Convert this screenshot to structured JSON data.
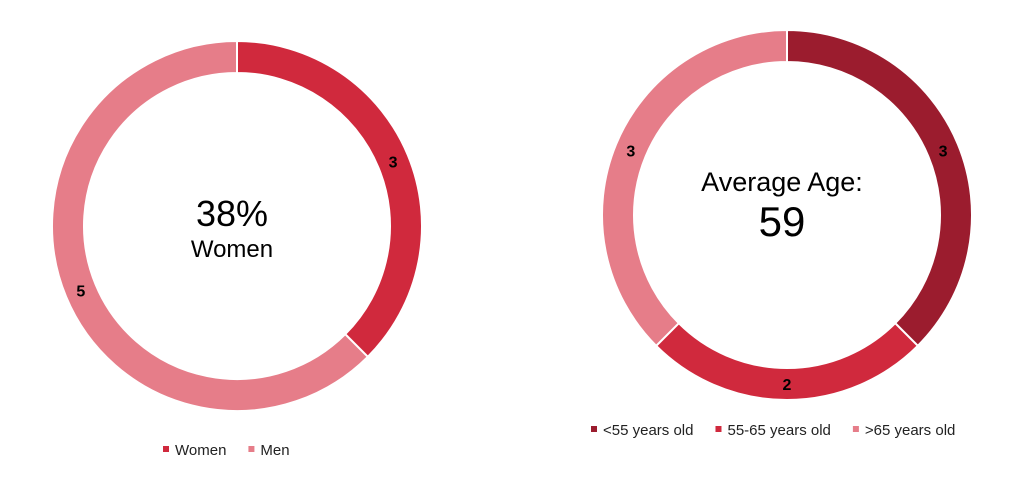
{
  "chart_data": [
    {
      "type": "donut",
      "center_value": "38%",
      "center_label": "Women",
      "slices": [
        {
          "name": "Women",
          "value": 3,
          "color": "#D0293D"
        },
        {
          "name": "Men",
          "value": 5,
          "color": "#E67D89"
        }
      ],
      "legend_position": "bottom"
    },
    {
      "type": "donut",
      "center_label": "Average Age:",
      "center_value": "59",
      "slices": [
        {
          "name": "<55 years old",
          "value": 3,
          "color": "#9B1C2E"
        },
        {
          "name": "55-65 years old",
          "value": 2,
          "color": "#D0293D"
        },
        {
          "name": ">65 years old",
          "value": 3,
          "color": "#E67D89"
        }
      ],
      "legend_position": "bottom"
    }
  ]
}
